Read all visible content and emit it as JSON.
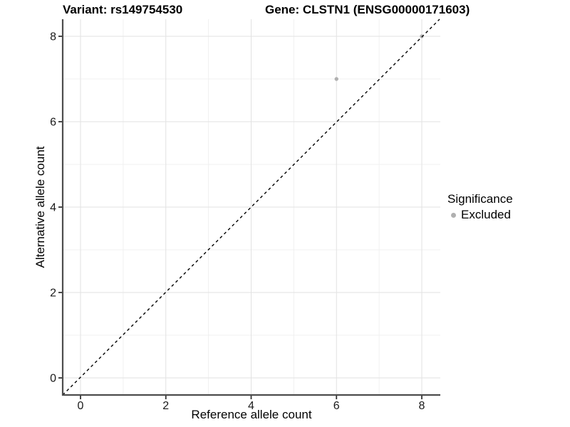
{
  "titles": {
    "variant": "Variant: rs149754530",
    "gene": "Gene: CLSTN1 (ENSG00000171603)"
  },
  "axes": {
    "x": {
      "label": "Reference allele count",
      "ticks": [
        "0",
        "2",
        "4",
        "6",
        "8"
      ]
    },
    "y": {
      "label": "Alternative allele count",
      "ticks": [
        "0",
        "2",
        "4",
        "6",
        "8"
      ]
    }
  },
  "legend": {
    "title": "Significance",
    "items": [
      {
        "label": "Excluded",
        "color": "#b0b0b0"
      }
    ]
  },
  "chart_data": {
    "type": "scatter",
    "title": "Variant: rs149754530 | Gene: CLSTN1 (ENSG00000171603)",
    "xlabel": "Reference allele count",
    "ylabel": "Alternative allele count",
    "series": [
      {
        "name": "Excluded",
        "color": "#b0b0b0",
        "points": [
          {
            "x": 6,
            "y": 7
          },
          {
            "x": 8,
            "y": 8
          }
        ]
      }
    ],
    "reference_line": {
      "equation": "y = x",
      "style": "dashed",
      "color": "#000000"
    },
    "xticks": [
      0,
      2,
      4,
      6,
      8
    ],
    "yticks": [
      0,
      2,
      4,
      6,
      8
    ],
    "minor_ticks": [
      1,
      3,
      5,
      7
    ],
    "xlim": [
      -0.42,
      8.42
    ],
    "ylim": [
      -0.42,
      8.42
    ],
    "grid": "major and minor, light grey",
    "legend_position": "right"
  },
  "colors": {
    "point": "#b0b0b0",
    "dashed_line": "#000000",
    "axis_line": "#4d4d4d",
    "tick_mark": "#333333",
    "tick_text": "#1a1a1a",
    "grid_major": "#e2e2e2",
    "grid_minor": "#f0f0f0",
    "background": "#ffffff"
  }
}
